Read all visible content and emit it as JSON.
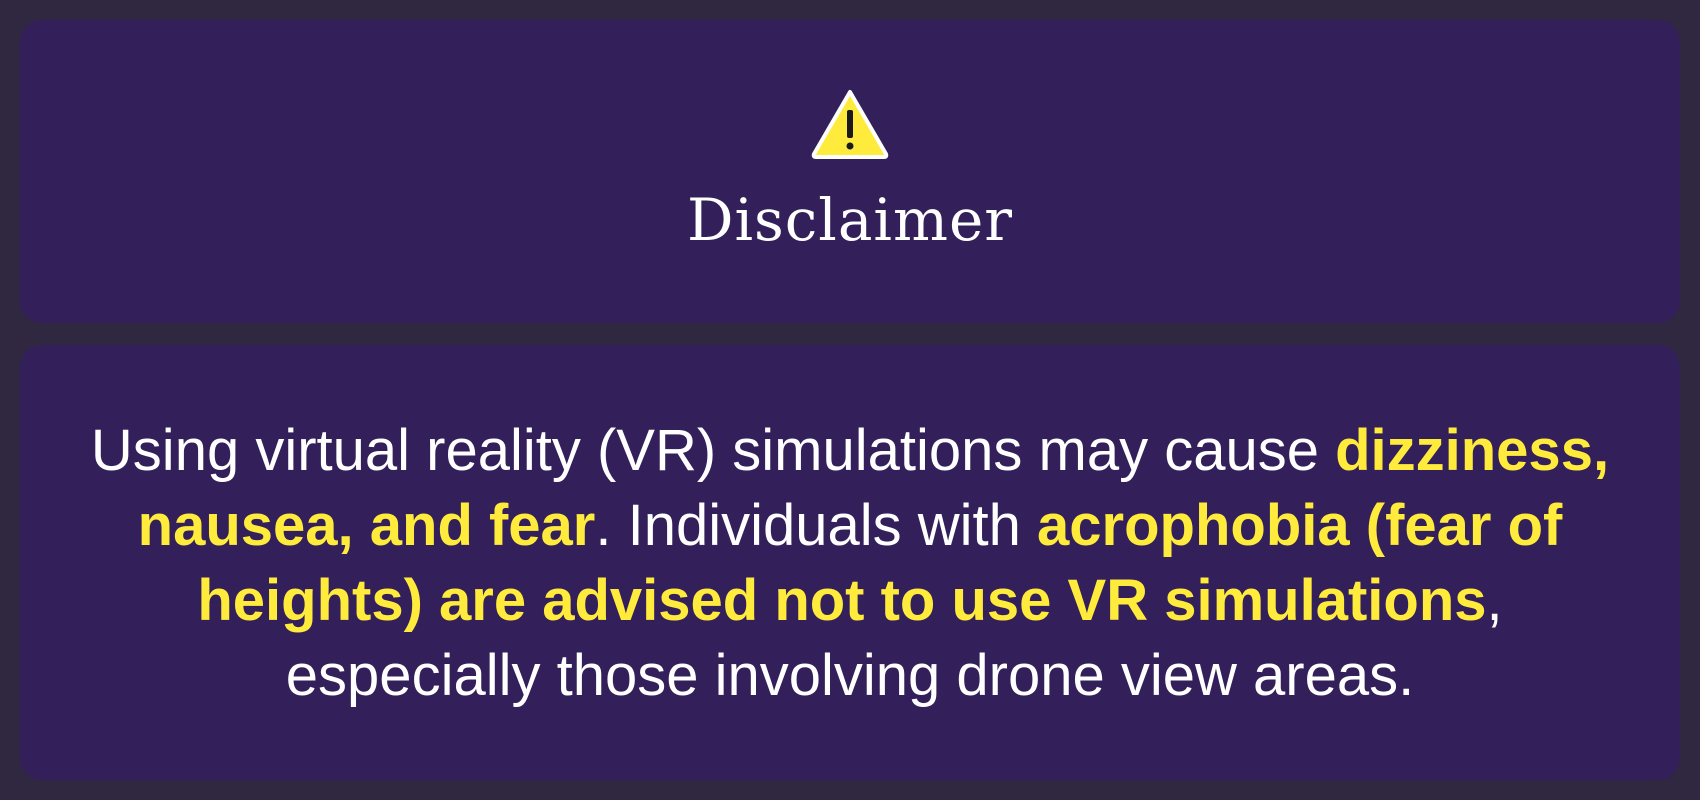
{
  "header": {
    "icon": "warning-icon",
    "title": "Disclaimer"
  },
  "message": {
    "part1": "Using virtual reality (VR) simulations may cause ",
    "highlight1": "dizziness, nausea, and fear",
    "part2": ". Individuals with ",
    "highlight2": "acrophobia (fear of heights) are advised not to use VR simulations",
    "part3": ", especially those involving drone view areas."
  },
  "colors": {
    "background": "#302840",
    "panel": "#33205a",
    "text": "#ffffff",
    "highlight": "#ffeb3b"
  }
}
